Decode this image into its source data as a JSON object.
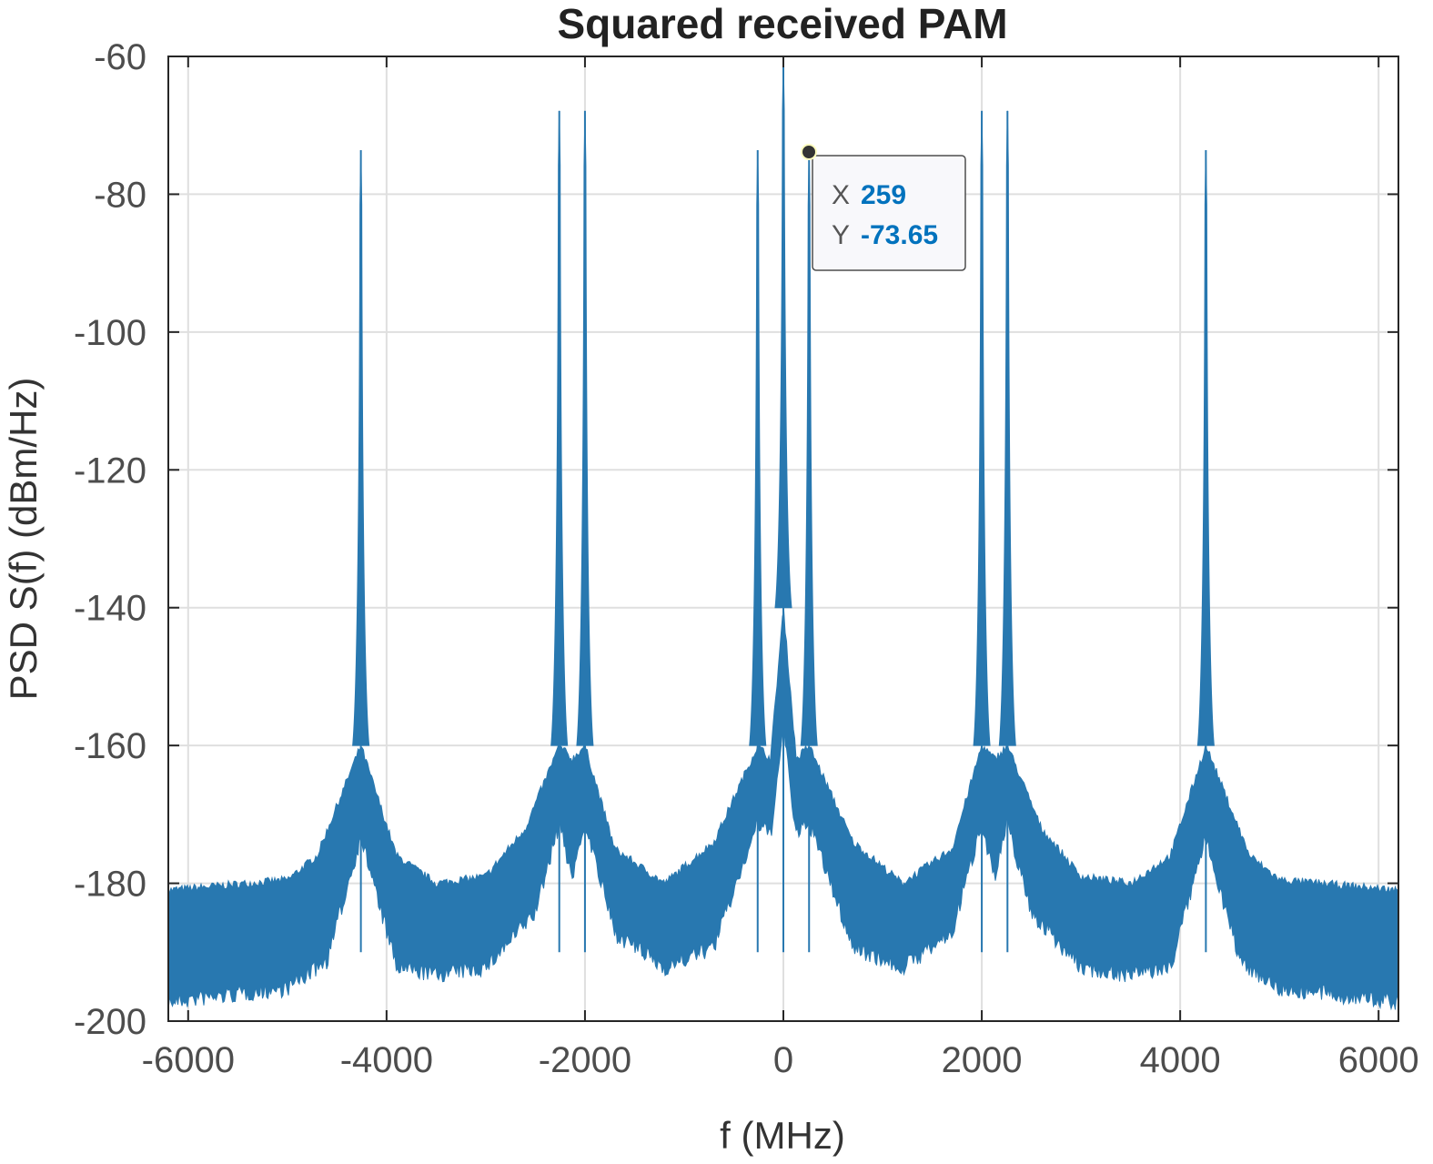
{
  "chart_data": {
    "type": "line",
    "title": "Squared received PAM",
    "xlabel": "f (MHz)",
    "ylabel": "PSD S(f)  (dBm/Hz)",
    "xlim": [
      -6200,
      6200
    ],
    "ylim": [
      -200,
      -60
    ],
    "xticks": [
      -6000,
      -4000,
      -2000,
      0,
      2000,
      4000,
      6000
    ],
    "yticks": [
      -60,
      -80,
      -100,
      -120,
      -140,
      -160,
      -180,
      -200
    ],
    "xtick_labels": [
      "-6000",
      "-4000",
      "-2000",
      "0",
      "2000",
      "4000",
      "6000"
    ],
    "ytick_labels": [
      "-60",
      "-80",
      "-100",
      "-120",
      "-140",
      "-160",
      "-180",
      "-200"
    ],
    "grid": true,
    "series": [
      {
        "name": "PSD",
        "color": "#2878b0",
        "peaks": [
          {
            "f": -4259,
            "level": -73.6
          },
          {
            "f": -2259,
            "level": -67.9
          },
          {
            "f": -2000,
            "level": -67.9
          },
          {
            "f": -259,
            "level": -73.6
          },
          {
            "f": 0,
            "level": -60.0
          },
          {
            "f": 259,
            "level": -73.65
          },
          {
            "f": 2000,
            "level": -67.9
          },
          {
            "f": 2259,
            "level": -67.9
          },
          {
            "f": 4259,
            "level": -73.6
          }
        ],
        "envelope_upper": [
          [
            -6200,
            -181
          ],
          [
            -5000,
            -179.5
          ],
          [
            -4700,
            -176
          ],
          [
            -4259,
            -160
          ],
          [
            -3900,
            -176
          ],
          [
            -3500,
            -180
          ],
          [
            -3000,
            -179
          ],
          [
            -2600,
            -172
          ],
          [
            -2259,
            -160
          ],
          [
            -2130,
            -162
          ],
          [
            -2000,
            -160
          ],
          [
            -1700,
            -175
          ],
          [
            -1200,
            -180
          ],
          [
            -700,
            -174
          ],
          [
            -259,
            -160
          ],
          [
            -130,
            -162
          ],
          [
            0,
            -140
          ],
          [
            130,
            -162
          ],
          [
            259,
            -160
          ],
          [
            700,
            -174
          ],
          [
            1200,
            -180
          ],
          [
            1700,
            -175
          ],
          [
            2000,
            -160
          ],
          [
            2130,
            -162
          ],
          [
            2259,
            -160
          ],
          [
            2600,
            -172
          ],
          [
            3000,
            -179
          ],
          [
            3500,
            -180
          ],
          [
            3900,
            -176
          ],
          [
            4259,
            -160
          ],
          [
            4700,
            -176
          ],
          [
            5000,
            -179.5
          ],
          [
            6200,
            -181
          ]
        ],
        "envelope_lower": [
          [
            -6200,
            -196
          ],
          [
            -5000,
            -194
          ],
          [
            -4600,
            -190
          ],
          [
            -4259,
            -172
          ],
          [
            -3900,
            -191
          ],
          [
            -3500,
            -192
          ],
          [
            -3000,
            -191
          ],
          [
            -2500,
            -183
          ],
          [
            -2259,
            -170
          ],
          [
            -2130,
            -178
          ],
          [
            -2000,
            -170
          ],
          [
            -1700,
            -186
          ],
          [
            -1200,
            -191
          ],
          [
            -700,
            -188
          ],
          [
            -259,
            -170
          ],
          [
            -130,
            -172
          ],
          [
            0,
            -156
          ],
          [
            130,
            -172
          ],
          [
            259,
            -170
          ],
          [
            700,
            -188
          ],
          [
            1200,
            -191
          ],
          [
            1700,
            -186
          ],
          [
            2000,
            -170
          ],
          [
            2130,
            -178
          ],
          [
            2259,
            -170
          ],
          [
            2500,
            -183
          ],
          [
            3000,
            -191
          ],
          [
            3500,
            -192
          ],
          [
            3900,
            -191
          ],
          [
            4259,
            -172
          ],
          [
            4600,
            -190
          ],
          [
            5000,
            -194
          ],
          [
            6200,
            -196
          ]
        ]
      }
    ],
    "annotations": [
      {
        "type": "datatip",
        "x": 259,
        "y": -73.65,
        "x_label": "X",
        "y_label": "Y",
        "x_text": "259",
        "y_text": "-73.65"
      }
    ]
  }
}
